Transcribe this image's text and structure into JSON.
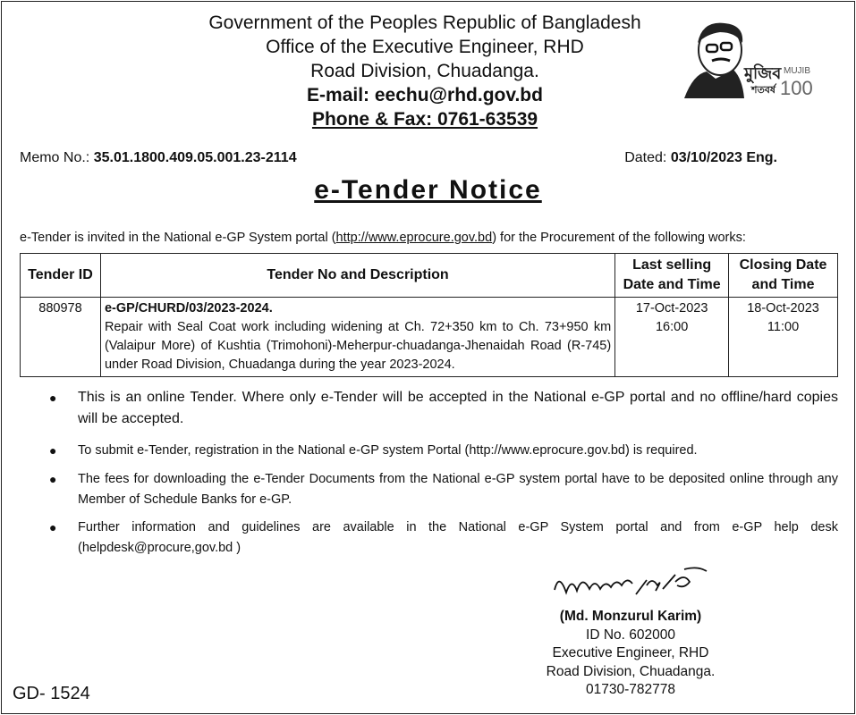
{
  "header": {
    "line1": "Government of the Peoples Republic of Bangladesh",
    "line2": "Office of the Executive Engineer, RHD",
    "line3": "Road Division, Chuadanga.",
    "email": "E-mail: eechu@rhd.gov.bd",
    "phone": "Phone & Fax: 0761-63539",
    "logo_text": "মুজিব শতবর্ষ MUJIB 100"
  },
  "memo": {
    "label": "Memo No.:",
    "value": "35.01.1800.409.05.001.23-2114"
  },
  "dated": {
    "label": "Dated:",
    "value": "03/10/2023 Eng."
  },
  "title": "e-Tender Notice",
  "intro": {
    "before": "e-Tender is invited in the National e-GP System portal (",
    "link": "http://www.eprocure.gov.bd",
    "after": ") for the Procurement of the following works:"
  },
  "table": {
    "headers": [
      "Tender ID",
      "Tender No and Description",
      "Last selling Date and Time",
      "Closing Date and Time"
    ],
    "rows": [
      {
        "id": "880978",
        "tender_no": "e-GP/CHURD/03/2023-2024.",
        "description": "Repair with Seal Coat work including widening at Ch. 72+350 km to Ch. 73+950 km (Valaipur More) of Kushtia (Trimohoni)-Meherpur-chuadanga-Jhenaidah Road (R-745) under Road Division, Chuadanga during the year 2023-2024.",
        "last_selling_date": "17-Oct-2023",
        "last_selling_time": "16:00",
        "closing_date": "18-Oct-2023",
        "closing_time": "11:00"
      }
    ]
  },
  "bullets": [
    "This is an online Tender. Where only e-Tender will be accepted in the National e-GP portal and no offline/hard copies will be accepted.",
    "To submit e-Tender, registration in the National e-GP system Portal (http://www.eprocure.gov.bd) is required.",
    "The fees for downloading the e-Tender Documents from the National e-GP system portal have to be deposited online through any Member of Schedule Banks for e-GP.",
    "Further information and guidelines are available in the National e-GP System portal and from e-GP help desk (helpdesk@procure,gov.bd )"
  ],
  "signature": {
    "name": "(Md. Monzurul Karim)",
    "id": "ID No. 602000",
    "designation": "Executive Engineer, RHD",
    "office": "Road Division, Chuadanga.",
    "phone": "01730-782778"
  },
  "footer_code": "GD- 1524"
}
